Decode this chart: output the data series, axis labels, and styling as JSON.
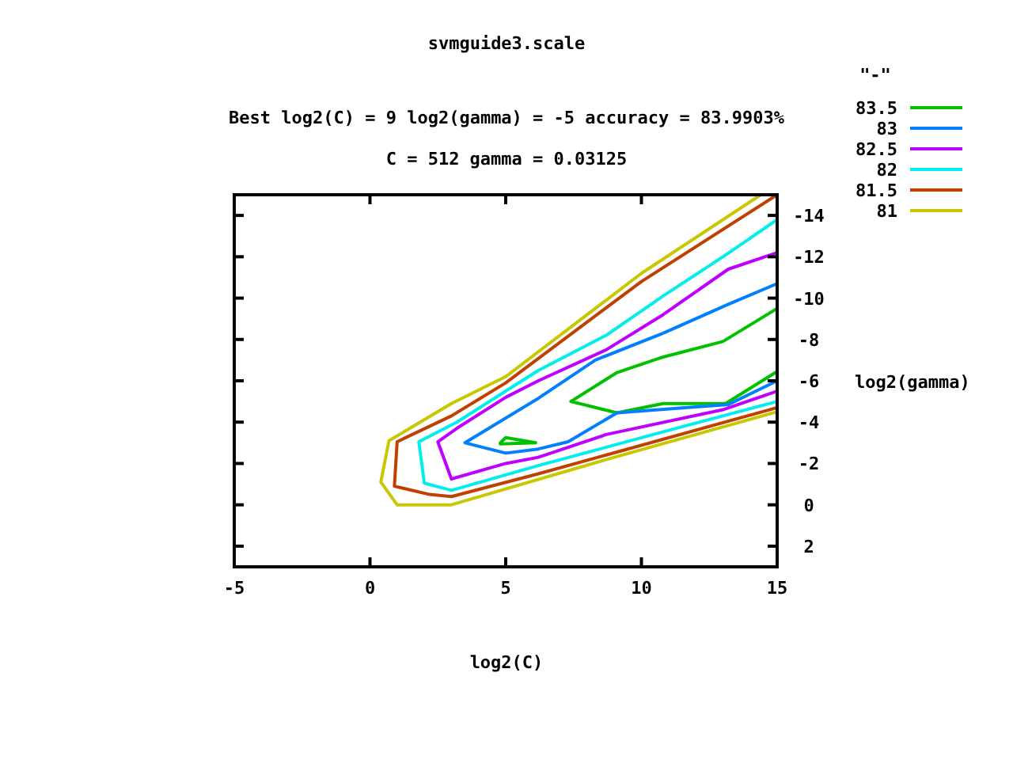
{
  "chart_data": {
    "type": "line",
    "title": "svmguide3.scale",
    "subtitle": "Best log2(C) = 9  log2(gamma) = -5  accuracy = 83.9903%\nC = 512  gamma = 0.03125",
    "xlabel": "log2(C)",
    "ylabel": "log2(gamma)",
    "legend_title": "\"-\"",
    "legend": "top right",
    "grid": false,
    "xlim": [
      -5,
      15
    ],
    "xticks": [
      -5,
      0,
      5,
      10,
      15
    ],
    "ylim": [
      3,
      -15
    ],
    "yticks": [
      -14,
      -12,
      -10,
      -8,
      -6,
      -4,
      -2,
      0,
      2
    ],
    "series": [
      {
        "name": "83.5",
        "color": "#00c000",
        "x": [
          4.8,
          5,
          6.1,
          4.8,
          6.1,
          15,
          13,
          10.8,
          9.1,
          7.4,
          9.1,
          10.8,
          13.1,
          15
        ],
        "values": [
          -3,
          -3.25,
          -3,
          -2.95,
          null,
          -9.5,
          -7.9,
          -7.15,
          -6.4,
          -5,
          -4.45,
          -4.9,
          -4.9,
          -6.45
        ]
      },
      {
        "name": "83",
        "color": "#0080ff",
        "x": [
          15,
          13.2,
          10.8,
          8.3,
          6.2,
          3.5,
          5,
          6.2,
          7.3,
          9.1,
          11.6,
          13.2,
          15
        ],
        "values": [
          -10.7,
          -9.7,
          -8.3,
          -7,
          -5.15,
          -3,
          -2.5,
          -2.7,
          -3.05,
          -4.45,
          -4.7,
          -4.85,
          -6
        ]
      },
      {
        "name": "82.5",
        "color": "#c000ff",
        "x": [
          15,
          13.2,
          10.8,
          8.7,
          6.2,
          5,
          3.2,
          2.5,
          3,
          5,
          6.2,
          8.7,
          13,
          15
        ],
        "values": [
          -12.2,
          -11.4,
          -9.2,
          -7.5,
          -6,
          -5.2,
          -3.7,
          -3.05,
          -1.25,
          -2,
          -2.3,
          -3.4,
          -4.6,
          -5.5
        ]
      },
      {
        "name": "82",
        "color": "#00eeee",
        "x": [
          15,
          13.9,
          13,
          10.8,
          8.7,
          6.2,
          5,
          3.2,
          1.8,
          2,
          3,
          6.2,
          11,
          15
        ],
        "values": [
          -13.8,
          -12.8,
          -12,
          -10.1,
          -8.2,
          -6.5,
          -5.5,
          -4,
          -3.05,
          -1.05,
          -0.7,
          -1.9,
          -3.6,
          -5
        ]
      },
      {
        "name": "81.5",
        "color": "#c04000",
        "x": [
          15,
          10,
          5,
          3,
          1,
          0.9,
          2.2,
          3,
          6.2,
          15
        ],
        "values": [
          -15,
          -10.8,
          -5.9,
          -4.3,
          -3.05,
          -0.9,
          -0.5,
          -0.4,
          -1.5,
          -4.7
        ]
      },
      {
        "name": "81",
        "color": "#c8c800",
        "x": [
          14.4,
          10,
          5,
          3,
          0.7,
          0.4,
          1,
          3,
          9,
          15
        ],
        "values": [
          -15,
          -11.2,
          -6.2,
          -4.9,
          -3.1,
          -1.1,
          0,
          0,
          -2.3,
          -4.5
        ]
      }
    ]
  }
}
